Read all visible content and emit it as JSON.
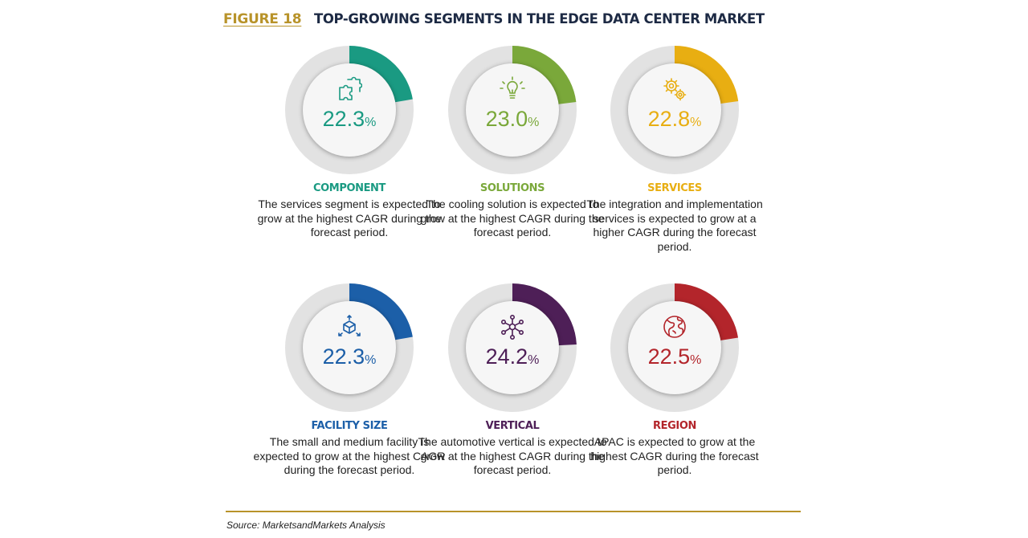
{
  "figure": {
    "label": "FIGURE 18",
    "title": "TOP-GROWING SEGMENTS IN THE EDGE DATA CENTER MARKET"
  },
  "chart_data": {
    "type": "donut-grid",
    "title": "TOP-GROWING SEGMENTS IN THE EDGE DATA CENTER MARKET",
    "unit": "%",
    "segments": [
      {
        "name": "COMPONENT",
        "value": "22.3",
        "icon": "puzzle-icon",
        "color": "#1a9a82",
        "description": "The services segment is expected to grow at the highest CAGR during the forecast period."
      },
      {
        "name": "SOLUTIONS",
        "value": "23.0",
        "icon": "lightbulb-icon",
        "color": "#7aa83a",
        "description": "The cooling solution is expected to grow at the highest CAGR during the forecast period."
      },
      {
        "name": "SERVICES",
        "value": "22.8",
        "icon": "gears-icon",
        "color": "#e8ae12",
        "description": "The integration and implementation services is expected to grow at a higher CAGR during the forecast period."
      },
      {
        "name": "FACILITY SIZE",
        "value": "22.3",
        "icon": "cube-icon",
        "color": "#1c5fa8",
        "description": "The small and medium facility is expected to grow at the highest CAGR during the forecast period."
      },
      {
        "name": "VERTICAL",
        "value": "24.2",
        "icon": "network-icon",
        "color": "#4e1f57",
        "description": "The automotive vertical is expected to grow at the highest CAGR during the forecast period."
      },
      {
        "name": "REGION",
        "value": "22.5",
        "icon": "globe-icon",
        "color": "#b3252b",
        "description": "APAC is expected to grow at the highest CAGR during the forecast period."
      }
    ]
  },
  "source": "Source: MarketsandMarkets Analysis"
}
